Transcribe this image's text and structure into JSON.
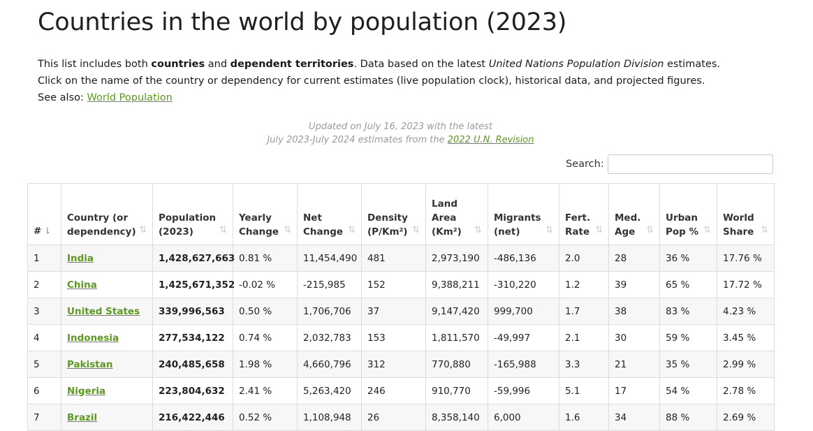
{
  "page": {
    "title": "Countries in the world by population (2023)",
    "intro": {
      "l1_a": "This list includes both ",
      "l1_b": "countries",
      "l1_c": " and ",
      "l1_d": "dependent territories",
      "l1_e": ". Data based on the latest ",
      "l1_f": "United Nations Population Division",
      "l1_g": " estimates.",
      "l2": "Click on the name of the country or dependency for current estimates (live population clock), historical data, and projected figures.",
      "l3_a": "See also: ",
      "l3_link": "World Population "
    },
    "updated": {
      "line1": "Updated on July 16, 2023 with the latest",
      "line2_a": "July 2023-July 2024 estimates from the ",
      "line2_link": "2022 U.N. Revision"
    },
    "search": {
      "label": "Search:",
      "value": ""
    }
  },
  "table": {
    "columns": [
      {
        "label": "#"
      },
      {
        "label": "Country (or dependency)"
      },
      {
        "label": "Population (2023)"
      },
      {
        "label": "Yearly Change"
      },
      {
        "label": "Net Change"
      },
      {
        "label": "Density (P/Km²)"
      },
      {
        "label": "Land Area (Km²)"
      },
      {
        "label": "Migrants (net)"
      },
      {
        "label": "Fert. Rate"
      },
      {
        "label": "Med. Age"
      },
      {
        "label": "Urban Pop %"
      },
      {
        "label": "World Share"
      }
    ],
    "sort_icon": "⇅",
    "sort_icon_active": "⇂",
    "rows": [
      {
        "rank": "1",
        "country": "India",
        "population": "1,428,627,663",
        "yearly_change": "0.81 %",
        "net_change": "11,454,490",
        "density": "481",
        "land_area": "2,973,190",
        "migrants": "-486,136",
        "fert_rate": "2.0",
        "med_age": "28",
        "urban_pop": "36 %",
        "world_share": "17.76 %"
      },
      {
        "rank": "2",
        "country": "China",
        "population": "1,425,671,352",
        "yearly_change": "-0.02 %",
        "net_change": "-215,985",
        "density": "152",
        "land_area": "9,388,211",
        "migrants": "-310,220",
        "fert_rate": "1.2",
        "med_age": "39",
        "urban_pop": "65 %",
        "world_share": "17.72 %"
      },
      {
        "rank": "3",
        "country": "United States",
        "population": "339,996,563",
        "yearly_change": "0.50 %",
        "net_change": "1,706,706",
        "density": "37",
        "land_area": "9,147,420",
        "migrants": "999,700",
        "fert_rate": "1.7",
        "med_age": "38",
        "urban_pop": "83 %",
        "world_share": "4.23 %"
      },
      {
        "rank": "4",
        "country": "Indonesia",
        "population": "277,534,122",
        "yearly_change": "0.74 %",
        "net_change": "2,032,783",
        "density": "153",
        "land_area": "1,811,570",
        "migrants": "-49,997",
        "fert_rate": "2.1",
        "med_age": "30",
        "urban_pop": "59 %",
        "world_share": "3.45 %"
      },
      {
        "rank": "5",
        "country": "Pakistan",
        "population": "240,485,658",
        "yearly_change": "1.98 %",
        "net_change": "4,660,796",
        "density": "312",
        "land_area": "770,880",
        "migrants": "-165,988",
        "fert_rate": "3.3",
        "med_age": "21",
        "urban_pop": "35 %",
        "world_share": "2.99 %"
      },
      {
        "rank": "6",
        "country": "Nigeria",
        "population": "223,804,632",
        "yearly_change": "2.41 %",
        "net_change": "5,263,420",
        "density": "246",
        "land_area": "910,770",
        "migrants": "-59,996",
        "fert_rate": "5.1",
        "med_age": "17",
        "urban_pop": "54 %",
        "world_share": "2.78 %"
      },
      {
        "rank": "7",
        "country": "Brazil",
        "population": "216,422,446",
        "yearly_change": "0.52 %",
        "net_change": "1,108,948",
        "density": "26",
        "land_area": "8,358,140",
        "migrants": "6,000",
        "fert_rate": "1.6",
        "med_age": "34",
        "urban_pop": "88 %",
        "world_share": "2.69 %"
      }
    ]
  },
  "colors": {
    "link": "#5a9c1a",
    "muted": "#9a9a9a",
    "stripe": "#f7f7f7"
  }
}
